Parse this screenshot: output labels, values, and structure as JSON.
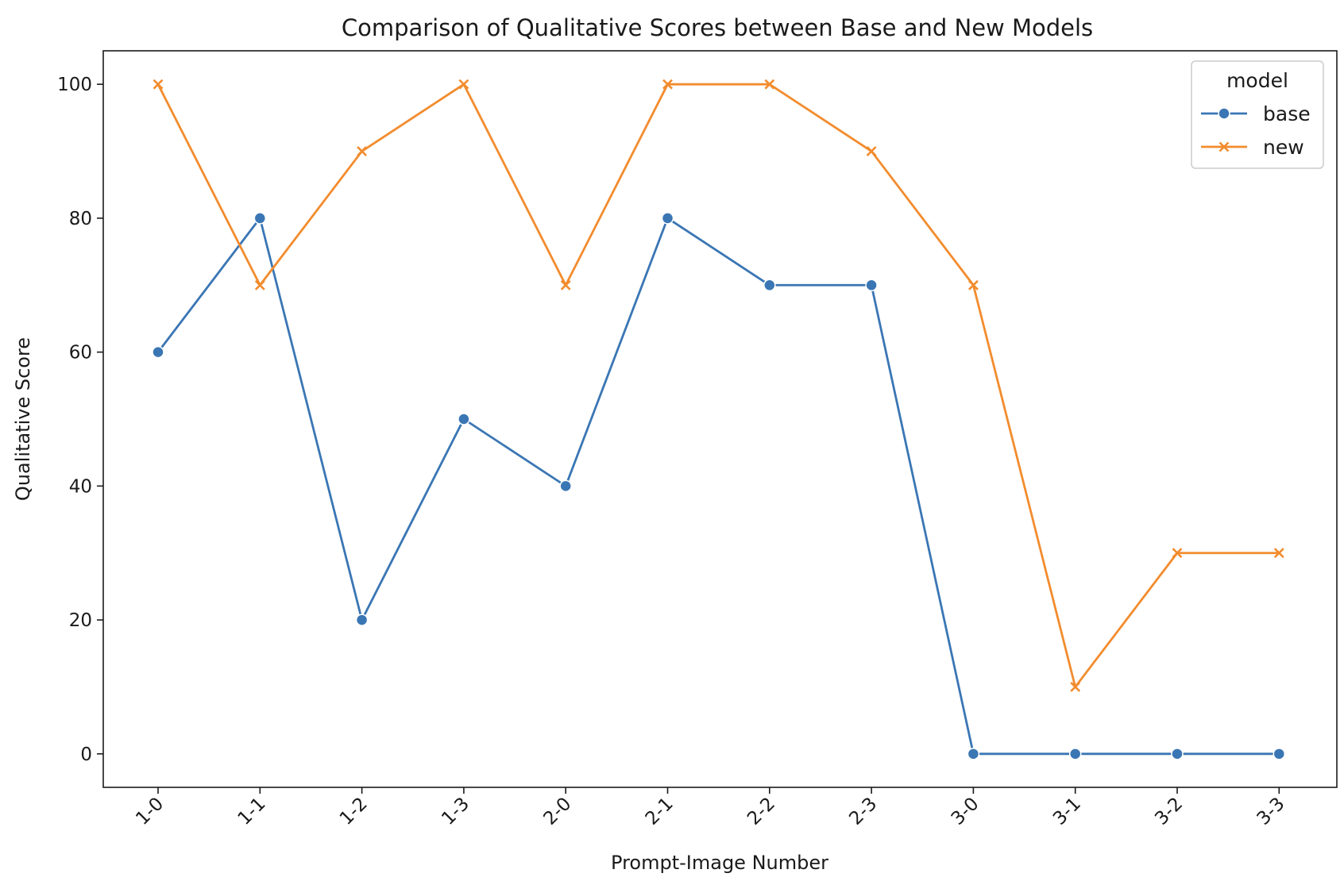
{
  "chart_data": {
    "type": "line",
    "title": "Comparison of Qualitative Scores between Base and New Models",
    "xlabel": "Prompt-Image Number",
    "ylabel": "Qualitative Score",
    "categories": [
      "1-0",
      "1-1",
      "1-2",
      "1-3",
      "2-0",
      "2-1",
      "2-2",
      "2-3",
      "3-0",
      "3-1",
      "3-2",
      "3-3"
    ],
    "ylim": [
      -5,
      105
    ],
    "yticks": [
      0,
      20,
      40,
      60,
      80,
      100
    ],
    "grid": false,
    "legend": {
      "title": "model",
      "placement": "top-right"
    },
    "series": [
      {
        "name": "base",
        "marker": "circle",
        "color": "#3a76b4",
        "values": [
          60,
          80,
          20,
          50,
          40,
          80,
          70,
          70,
          0,
          0,
          0,
          0
        ]
      },
      {
        "name": "new",
        "marker": "x",
        "color": "#f28c2e",
        "values": [
          100,
          70,
          90,
          100,
          70,
          100,
          100,
          90,
          70,
          10,
          30,
          30
        ]
      }
    ]
  }
}
